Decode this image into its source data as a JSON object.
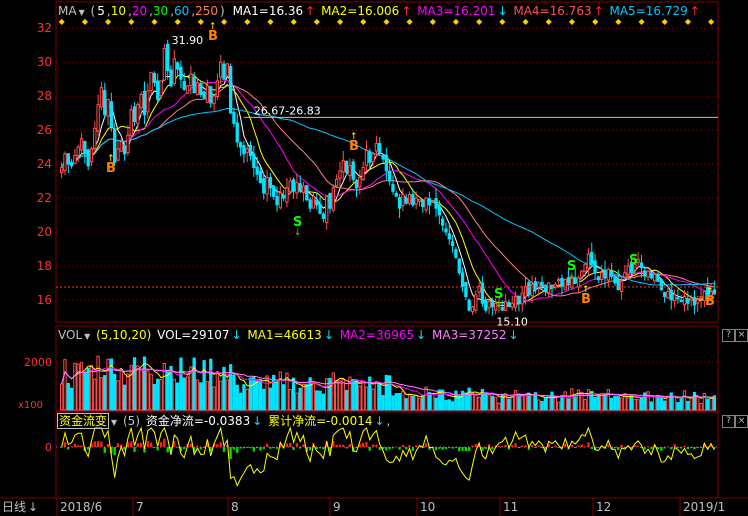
{
  "main_header": {
    "name": "MA",
    "params_open": "(",
    "p1": "5",
    "p2": "10",
    "p3": "20",
    "p4": "30",
    "p5": "60",
    "p6": "250",
    "params_close": ")",
    "ma1": "MA1=16.36",
    "ma2": "MA2=16.006",
    "ma3": "MA3=16.201",
    "ma4": "MA4=16.763",
    "ma5": "MA5=16.729",
    "arrow_up": "↑",
    "arrow_down": "↓"
  },
  "vol_header": {
    "name": "VOL",
    "params": "(5,10,20)",
    "vol": "VOL=29107",
    "ma1": "MA1=46613",
    "ma2": "MA2=36965",
    "ma3": "MA3=37252",
    "arrow_down": "↓"
  },
  "fund_header": {
    "name": "资金流变",
    "param": "(5)",
    "net": "资金净流=-0.0383",
    "cum": "累计净流=-0.0014",
    "arrow_down": "↓",
    "sep": ","
  },
  "bottom_bar": {
    "period": "日线",
    "period_arrow": "↓"
  },
  "controls": {
    "question": "?",
    "close": "×"
  },
  "colors": {
    "up": "#ff5050",
    "down": "#00e5ff",
    "ma1": "#ffffff",
    "ma2": "#ffff00",
    "ma3": "#ff00ff",
    "ma4": "#00ff00",
    "ma5": "#00c8ff",
    "grid": "#800000",
    "signal_s": "#00ff00",
    "signal_b": "#ff8000",
    "axis_text": "#ff3030"
  },
  "chart_data": {
    "type": "candlestick",
    "y_ticks": [
      32,
      30,
      28,
      26,
      24,
      22,
      20,
      18,
      16
    ],
    "ylim": [
      14.7,
      32.6
    ],
    "x_labels": [
      "2018/6",
      "7",
      "8",
      "9",
      "10",
      "11",
      "12",
      "2019/1"
    ],
    "annotations": {
      "high_label": "31.90",
      "low_label": "15.10",
      "range_label": "26.67-26.83",
      "range_value": 26.75,
      "current_price_line": 16.76
    },
    "signals": [
      "B",
      "B",
      "S",
      "B",
      "S",
      "S",
      "B",
      "S",
      "B"
    ],
    "closes": [
      23.8,
      24.6,
      24.0,
      23.9,
      24.5,
      25.0,
      25.5,
      24.6,
      23.9,
      24.9,
      26.1,
      27.5,
      28.5,
      26.9,
      27.8,
      26.2,
      24.1,
      24.9,
      25.3,
      24.6,
      25.7,
      27.2,
      26.5,
      27.5,
      28.1,
      26.9,
      28.3,
      29.4,
      28.8,
      27.8,
      28.9,
      30.8,
      29.5,
      28.6,
      30.2,
      29.6,
      29.0,
      28.4,
      28.6,
      29.3,
      28.2,
      28.8,
      28.1,
      27.9,
      28.6,
      27.6,
      28.0,
      28.9,
      30.0,
      29.0,
      29.9,
      27.0,
      26.4,
      25.3,
      25.0,
      24.6,
      24.9,
      24.5,
      23.8,
      23.4,
      22.9,
      22.3,
      23.2,
      22.6,
      22.1,
      21.6,
      22.3,
      22.0,
      22.6,
      23.0,
      22.4,
      22.9,
      22.4,
      22.7,
      21.9,
      21.4,
      22.1,
      21.6,
      21.1,
      20.8,
      22.1,
      21.4,
      22.6,
      23.1,
      23.6,
      24.2,
      23.5,
      23.9,
      23.1,
      22.6,
      23.2,
      23.8,
      24.8,
      24.1,
      24.6,
      25.2,
      24.7,
      24.3,
      23.6,
      23.0,
      22.4,
      22.1,
      21.4,
      22.2,
      21.7,
      22.2,
      21.6,
      22.0,
      21.9,
      21.5,
      22.0,
      21.6,
      21.8,
      21.4,
      21.0,
      20.4,
      20.0,
      19.6,
      19.2,
      18.5,
      17.6,
      16.8,
      16.2,
      15.4,
      15.6,
      16.3,
      16.8,
      15.8,
      15.4,
      15.9,
      15.6,
      15.8,
      15.7,
      15.4,
      15.9,
      15.6,
      15.8,
      16.2,
      15.8,
      16.4,
      16.8,
      16.3,
      16.9,
      16.6,
      17.0,
      16.8,
      16.5,
      17.0,
      16.7,
      16.9,
      17.2,
      16.8,
      17.2,
      17.0,
      17.4,
      17.0,
      17.3,
      17.7,
      18.1,
      18.7,
      18.1,
      17.6,
      17.2,
      17.6,
      17.3,
      17.8,
      17.4,
      17.0,
      16.6,
      17.1,
      17.6,
      18.0,
      17.6,
      18.1,
      18.4,
      17.9,
      17.4,
      17.7,
      17.3,
      17.5,
      17.1,
      16.6,
      16.2,
      16.5,
      16.0,
      16.3,
      16.1,
      15.9,
      16.2,
      15.8,
      16.1,
      15.7,
      16.0,
      16.2,
      16.5,
      16.3,
      16.5,
      16.36
    ]
  }
}
